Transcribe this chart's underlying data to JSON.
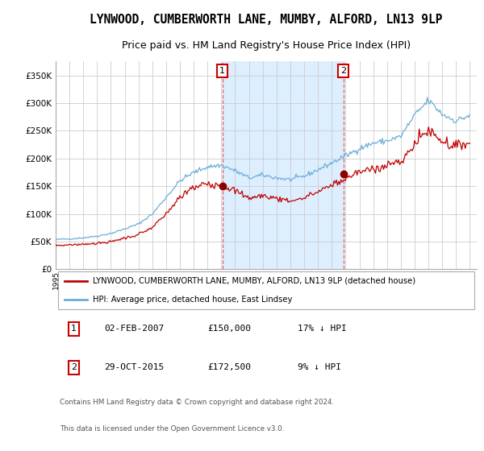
{
  "title": "LYNWOOD, CUMBERWORTH LANE, MUMBY, ALFORD, LN13 9LP",
  "subtitle": "Price paid vs. HM Land Registry's House Price Index (HPI)",
  "title_fontsize": 10.5,
  "subtitle_fontsize": 9,
  "background_color": "#ffffff",
  "plot_background_color": "#ffffff",
  "shade_color": "#ddeeff",
  "grid_color": "#cccccc",
  "hpi_color": "#6baed6",
  "price_color": "#c00000",
  "marker_color": "#8b0000",
  "dashed_color": "#e06060",
  "annotation_box_edge": "#cc0000",
  "annotation_text_color": "#000000",
  "ylim": [
    0,
    375000
  ],
  "yticks": [
    0,
    50000,
    100000,
    150000,
    200000,
    250000,
    300000,
    350000
  ],
  "ytick_labels": [
    "£0",
    "£50K",
    "£100K",
    "£150K",
    "£200K",
    "£250K",
    "£300K",
    "£350K"
  ],
  "legend_label_red": "LYNWOOD, CUMBERWORTH LANE, MUMBY, ALFORD, LN13 9LP (detached house)",
  "legend_label_blue": "HPI: Average price, detached house, East Lindsey",
  "sale1_date_x": 2007.08,
  "sale1_price": 150000,
  "sale1_label": "1",
  "sale2_date_x": 2015.83,
  "sale2_price": 172500,
  "sale2_label": "2",
  "footer_line1": "Contains HM Land Registry data © Crown copyright and database right 2024.",
  "footer_line2": "This data is licensed under the Open Government Licence v3.0.",
  "table_row1": [
    "1",
    "02-FEB-2007",
    "£150,000",
    "17% ↓ HPI"
  ],
  "table_row2": [
    "2",
    "29-OCT-2015",
    "£172,500",
    "9% ↓ HPI"
  ],
  "xlim_start": 1995.0,
  "xlim_end": 2025.5
}
